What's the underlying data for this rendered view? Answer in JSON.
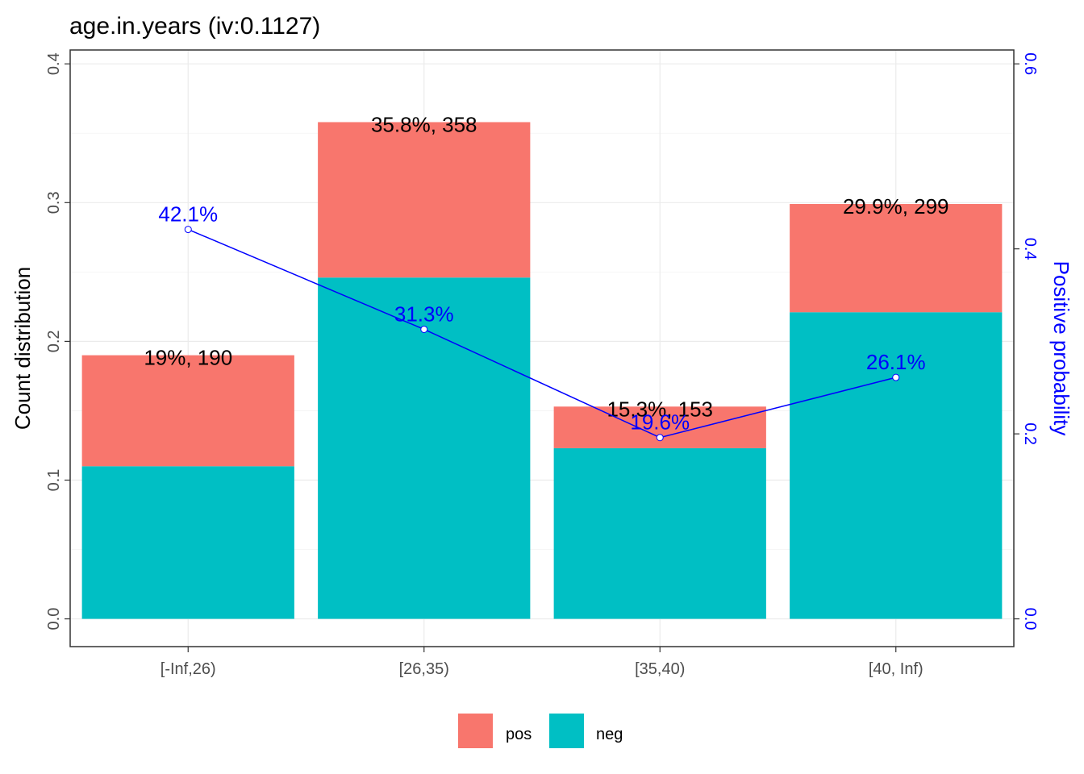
{
  "chart_data": {
    "type": "bar",
    "title": "age.in.years  (iv:0.1127)",
    "categories": [
      "[-Inf,26)",
      "[26,35)",
      "[35,40)",
      "[40, Inf)"
    ],
    "series": [
      {
        "name": "neg",
        "values": [
          0.11,
          0.246,
          0.123,
          0.221
        ],
        "color": "#00BFC4"
      },
      {
        "name": "pos",
        "values": [
          0.08,
          0.112,
          0.03,
          0.078
        ],
        "color": "#F8766D"
      }
    ],
    "bar_labels": [
      "19%, 190",
      "35.8%, 358",
      "15.3%, 153",
      "29.9%, 299"
    ],
    "positive_probability": {
      "values": [
        0.421,
        0.313,
        0.196,
        0.261
      ],
      "labels": [
        "42.1%",
        "31.3%",
        "19.6%",
        "26.1%"
      ],
      "color": "#0000FF"
    },
    "ylabel": "Count distribution",
    "y2label": "Positive probability",
    "ylim": [
      -0.02,
      0.41
    ],
    "y2lim": [
      -0.03,
      0.615
    ],
    "yticks": [
      0.0,
      0.1,
      0.2,
      0.3,
      0.4
    ],
    "ytick_labels": [
      "0.0",
      "0.1",
      "0.2",
      "0.3",
      "0.4"
    ],
    "y2ticks": [
      0.0,
      0.2,
      0.4,
      0.6
    ],
    "y2tick_labels": [
      "0.0",
      "0.2",
      "0.4",
      "0.6"
    ],
    "grid": true,
    "legend": {
      "position": "bottom",
      "entries": [
        "pos",
        "neg"
      ]
    }
  }
}
